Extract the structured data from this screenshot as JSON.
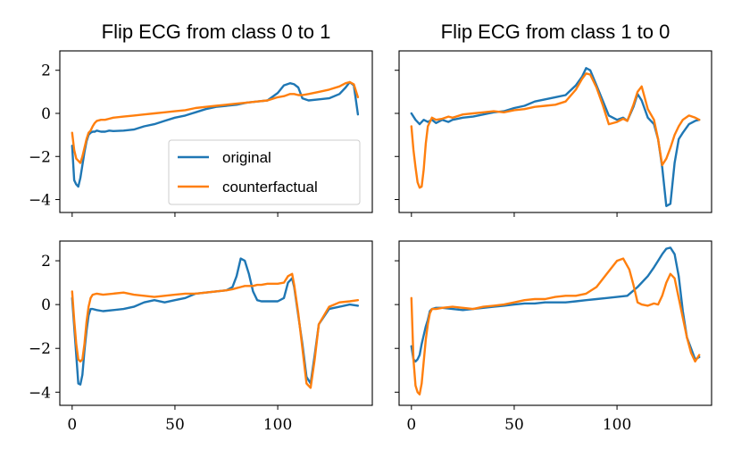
{
  "chart_data": {
    "type": "line",
    "layout": "2x2",
    "colors": {
      "original": "#1f77b4",
      "counterfactual": "#ff7f0e"
    },
    "legend": {
      "placement": "lower-right of top-left panel",
      "entries": [
        {
          "name": "original",
          "color": "#1f77b4"
        },
        {
          "name": "counterfactual",
          "color": "#ff7f0e"
        }
      ]
    },
    "titles": [
      "Flip ECG from class 0 to 1",
      "Flip ECG from class 1 to 0"
    ],
    "xlim": [
      -6,
      146
    ],
    "ylim": [
      -4.6,
      2.9
    ],
    "x_ticks": [
      0,
      50,
      100
    ],
    "y_ticks": [
      2,
      0,
      -2,
      -4
    ],
    "y_tick_labels": [
      "2",
      "0",
      "−2",
      "−4"
    ],
    "grid": false,
    "panels": [
      {
        "row": 0,
        "col": 0,
        "title": "Flip ECG from class 0 to 1",
        "show_xtick_labels": false,
        "show_ytick_labels": true,
        "series": [
          {
            "name": "original",
            "x": [
              0,
              1,
              2,
              3,
              4,
              5,
              6,
              7,
              8,
              9,
              10,
              11,
              12,
              14,
              16,
              18,
              20,
              25,
              30,
              35,
              40,
              45,
              50,
              55,
              60,
              65,
              70,
              75,
              80,
              85,
              90,
              95,
              100,
              103,
              106,
              108,
              110,
              112,
              115,
              120,
              125,
              130,
              133,
              135,
              137,
              139
            ],
            "y": [
              -1.5,
              -3.1,
              -3.3,
              -3.4,
              -3.0,
              -2.4,
              -1.8,
              -1.3,
              -1.0,
              -0.9,
              -0.85,
              -0.85,
              -0.8,
              -0.85,
              -0.85,
              -0.8,
              -0.82,
              -0.8,
              -0.75,
              -0.6,
              -0.5,
              -0.35,
              -0.2,
              -0.1,
              0.05,
              0.2,
              0.3,
              0.35,
              0.4,
              0.5,
              0.55,
              0.6,
              0.95,
              1.3,
              1.4,
              1.35,
              1.2,
              0.7,
              0.6,
              0.65,
              0.7,
              0.9,
              1.2,
              1.45,
              1.3,
              -0.05
            ]
          },
          {
            "name": "counterfactual",
            "x": [
              0,
              1,
              2,
              3,
              4,
              5,
              6,
              7,
              8,
              9,
              10,
              11,
              12,
              14,
              16,
              18,
              20,
              25,
              30,
              35,
              40,
              45,
              50,
              55,
              60,
              65,
              70,
              75,
              80,
              85,
              90,
              95,
              100,
              103,
              106,
              108,
              110,
              112,
              115,
              120,
              125,
              130,
              133,
              135,
              137,
              139
            ],
            "y": [
              -0.9,
              -1.7,
              -2.1,
              -2.2,
              -2.3,
              -2.0,
              -1.6,
              -1.2,
              -0.9,
              -0.8,
              -0.6,
              -0.45,
              -0.35,
              -0.3,
              -0.3,
              -0.25,
              -0.2,
              -0.15,
              -0.1,
              -0.05,
              0.0,
              0.05,
              0.1,
              0.15,
              0.25,
              0.3,
              0.35,
              0.4,
              0.45,
              0.5,
              0.55,
              0.6,
              0.75,
              0.8,
              0.9,
              0.9,
              0.85,
              0.85,
              0.9,
              1.0,
              1.1,
              1.25,
              1.4,
              1.45,
              1.35,
              0.75
            ]
          }
        ]
      },
      {
        "row": 0,
        "col": 1,
        "title": "Flip ECG from class 1 to 0",
        "show_xtick_labels": false,
        "show_ytick_labels": false,
        "series": [
          {
            "name": "original",
            "x": [
              0,
              2,
              4,
              6,
              8,
              10,
              12,
              15,
              18,
              20,
              25,
              30,
              35,
              40,
              45,
              50,
              55,
              60,
              65,
              70,
              75,
              80,
              83,
              85,
              87,
              90,
              93,
              96,
              100,
              103,
              105,
              108,
              110,
              112,
              115,
              118,
              120,
              122,
              124,
              126,
              128,
              130,
              132,
              135,
              138,
              140
            ],
            "y": [
              0.0,
              -0.3,
              -0.5,
              -0.3,
              -0.4,
              -0.3,
              -0.45,
              -0.3,
              -0.4,
              -0.3,
              -0.2,
              -0.15,
              -0.05,
              0.05,
              0.1,
              0.25,
              0.35,
              0.55,
              0.65,
              0.75,
              0.85,
              1.3,
              1.7,
              2.1,
              2.0,
              1.3,
              0.6,
              -0.1,
              -0.3,
              -0.2,
              -0.35,
              0.3,
              0.9,
              0.6,
              -0.2,
              -0.5,
              -1.2,
              -2.5,
              -4.3,
              -4.2,
              -2.3,
              -1.2,
              -0.9,
              -0.5,
              -0.35,
              -0.3
            ]
          },
          {
            "name": "counterfactual",
            "x": [
              0,
              1,
              2,
              3,
              4,
              5,
              6,
              7,
              8,
              10,
              12,
              15,
              18,
              20,
              25,
              30,
              35,
              40,
              45,
              50,
              55,
              60,
              65,
              70,
              75,
              80,
              83,
              85,
              87,
              90,
              93,
              96,
              100,
              103,
              105,
              108,
              110,
              112,
              115,
              118,
              120,
              122,
              124,
              126,
              128,
              130,
              132,
              135,
              138,
              140
            ],
            "y": [
              -0.6,
              -1.7,
              -2.5,
              -3.2,
              -3.45,
              -3.4,
              -2.6,
              -1.4,
              -0.6,
              -0.2,
              -0.3,
              -0.25,
              -0.15,
              -0.2,
              -0.05,
              0.0,
              0.05,
              0.1,
              0.05,
              0.15,
              0.2,
              0.3,
              0.35,
              0.4,
              0.55,
              1.1,
              1.6,
              1.85,
              1.8,
              1.2,
              0.4,
              -0.5,
              -0.4,
              -0.25,
              -0.35,
              0.4,
              1.0,
              1.25,
              0.2,
              -0.3,
              -1.2,
              -2.4,
              -2.1,
              -1.6,
              -1.0,
              -0.6,
              -0.3,
              -0.1,
              -0.2,
              -0.3
            ]
          }
        ]
      },
      {
        "row": 1,
        "col": 0,
        "title": "",
        "show_xtick_labels": true,
        "show_ytick_labels": true,
        "series": [
          {
            "name": "original",
            "x": [
              0,
              1,
              2,
              3,
              4,
              5,
              6,
              7,
              8,
              9,
              10,
              12,
              15,
              20,
              25,
              30,
              35,
              40,
              45,
              50,
              55,
              60,
              65,
              70,
              75,
              78,
              80,
              82,
              84,
              86,
              88,
              90,
              92,
              95,
              100,
              103,
              105,
              107,
              108,
              110,
              112,
              114,
              116,
              118,
              120,
              125,
              130,
              135,
              139
            ],
            "y": [
              0.3,
              -1.0,
              -2.3,
              -3.6,
              -3.65,
              -3.2,
              -2.1,
              -1.2,
              -0.5,
              -0.2,
              -0.2,
              -0.25,
              -0.3,
              -0.25,
              -0.2,
              -0.1,
              0.1,
              0.2,
              0.1,
              0.2,
              0.3,
              0.5,
              0.55,
              0.6,
              0.65,
              0.8,
              1.3,
              2.1,
              2.0,
              1.4,
              0.6,
              0.2,
              0.15,
              0.15,
              0.15,
              0.3,
              1.0,
              1.2,
              0.8,
              -0.5,
              -1.8,
              -3.3,
              -3.6,
              -2.3,
              -0.9,
              -0.2,
              -0.1,
              0.0,
              -0.05
            ]
          },
          {
            "name": "counterfactual",
            "x": [
              0,
              1,
              2,
              3,
              4,
              5,
              6,
              7,
              8,
              9,
              10,
              12,
              15,
              20,
              25,
              30,
              35,
              40,
              45,
              50,
              55,
              60,
              65,
              70,
              75,
              78,
              80,
              82,
              84,
              86,
              88,
              90,
              92,
              95,
              100,
              103,
              105,
              107,
              108,
              110,
              112,
              114,
              116,
              118,
              120,
              125,
              130,
              135,
              139
            ],
            "y": [
              0.6,
              -0.7,
              -1.8,
              -2.5,
              -2.6,
              -2.5,
              -1.8,
              -0.8,
              -0.1,
              0.3,
              0.45,
              0.5,
              0.45,
              0.5,
              0.55,
              0.45,
              0.4,
              0.35,
              0.4,
              0.45,
              0.5,
              0.5,
              0.55,
              0.6,
              0.65,
              0.7,
              0.75,
              0.8,
              0.85,
              0.85,
              0.85,
              0.9,
              0.9,
              0.95,
              0.95,
              1.0,
              1.3,
              1.4,
              0.9,
              -0.4,
              -2.0,
              -3.6,
              -3.8,
              -2.5,
              -0.9,
              -0.1,
              0.1,
              0.15,
              0.2
            ]
          }
        ]
      },
      {
        "row": 1,
        "col": 1,
        "title": "",
        "show_xtick_labels": true,
        "show_ytick_labels": false,
        "series": [
          {
            "name": "original",
            "x": [
              0,
              1,
              2,
              3,
              4,
              5,
              6,
              7,
              8,
              9,
              10,
              12,
              15,
              20,
              25,
              30,
              35,
              40,
              45,
              50,
              55,
              60,
              65,
              70,
              75,
              80,
              85,
              90,
              95,
              100,
              105,
              110,
              115,
              118,
              120,
              122,
              124,
              126,
              128,
              130,
              132,
              134,
              136,
              138,
              140
            ],
            "y": [
              -1.9,
              -2.5,
              -2.6,
              -2.5,
              -2.3,
              -1.8,
              -1.4,
              -1.0,
              -0.7,
              -0.3,
              -0.2,
              -0.15,
              -0.15,
              -0.2,
              -0.25,
              -0.2,
              -0.15,
              -0.1,
              -0.05,
              0.0,
              0.05,
              0.05,
              0.1,
              0.1,
              0.1,
              0.15,
              0.2,
              0.25,
              0.3,
              0.35,
              0.4,
              0.8,
              1.3,
              1.7,
              2.0,
              2.3,
              2.55,
              2.6,
              2.3,
              1.3,
              -0.3,
              -1.5,
              -2.0,
              -2.5,
              -2.4
            ]
          },
          {
            "name": "counterfactual",
            "x": [
              0,
              1,
              2,
              3,
              4,
              5,
              6,
              7,
              8,
              9,
              10,
              12,
              15,
              20,
              25,
              30,
              35,
              40,
              45,
              50,
              55,
              60,
              65,
              70,
              75,
              80,
              85,
              90,
              95,
              100,
              103,
              106,
              108,
              110,
              112,
              115,
              118,
              120,
              122,
              124,
              126,
              128,
              130,
              132,
              134,
              136,
              138,
              140
            ],
            "y": [
              0.3,
              -2.5,
              -3.7,
              -4.0,
              -4.1,
              -3.6,
              -2.6,
              -1.6,
              -0.9,
              -0.4,
              -0.2,
              -0.2,
              -0.15,
              -0.1,
              -0.15,
              -0.2,
              -0.1,
              -0.05,
              0.0,
              0.1,
              0.2,
              0.25,
              0.25,
              0.35,
              0.4,
              0.4,
              0.5,
              0.8,
              1.4,
              2.0,
              2.1,
              1.6,
              0.9,
              0.1,
              0.0,
              -0.05,
              0.05,
              0.0,
              0.4,
              1.0,
              1.4,
              1.2,
              0.3,
              -0.6,
              -1.5,
              -2.2,
              -2.6,
              -2.3
            ]
          }
        ]
      }
    ]
  }
}
